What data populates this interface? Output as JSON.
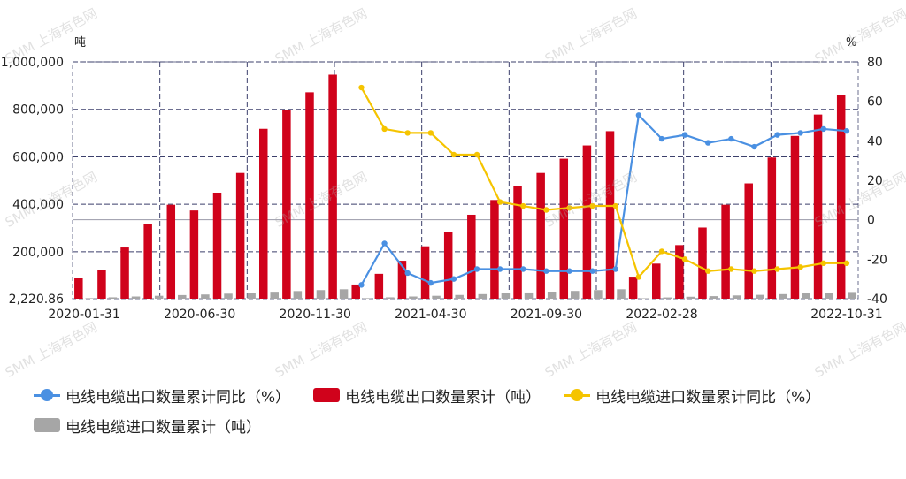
{
  "watermark": "SMM 上海有色网",
  "chart_data": {
    "type": "bar+line",
    "left_unit": "吨",
    "right_unit": "%",
    "y_left_ticks": [
      "2,220.86",
      "200,000",
      "400,000",
      "600,000",
      "800,000",
      "1,000,000"
    ],
    "y_left_tick_values": [
      2220.86,
      200000,
      400000,
      600000,
      800000,
      1000000
    ],
    "y_left_range": [
      2220.86,
      1000000
    ],
    "y_right_ticks": [
      "-40",
      "-20",
      "0",
      "20",
      "40",
      "60",
      "80"
    ],
    "y_right_range": [
      -40,
      80
    ],
    "x_tick_labels": [
      "2020-01-31",
      "2020-06-30",
      "2020-11-30",
      "2021-04-30",
      "2021-09-30",
      "2022-02-28",
      "2022-10-31"
    ],
    "categories": [
      "2020-01",
      "2020-02",
      "2020-03",
      "2020-04",
      "2020-05",
      "2020-06",
      "2020-07",
      "2020-08",
      "2020-09",
      "2020-10",
      "2020-11",
      "2020-12",
      "2021-01",
      "2021-02",
      "2021-03",
      "2021-04",
      "2021-05",
      "2021-06",
      "2021-07",
      "2021-08",
      "2021-09",
      "2021-10",
      "2021-11",
      "2021-12",
      "2022-01",
      "2022-02",
      "2022-03",
      "2022-04",
      "2022-05",
      "2022-06",
      "2022-07",
      "2022-08",
      "2022-09",
      "2022-10"
    ],
    "series": [
      {
        "name": "电线电缆出口数量累计（吨）",
        "type": "bar",
        "axis": "left",
        "color": "#d0021b",
        "values": [
          91000,
          123000,
          218000,
          318000,
          398000,
          374000,
          449000,
          532000,
          718000,
          796000,
          872000,
          946000,
          62000,
          107000,
          162000,
          223000,
          282000,
          356000,
          418000,
          478000,
          532000,
          592000,
          648000,
          708000,
          95000,
          150000,
          228000,
          302000,
          398000,
          488000,
          597000,
          688000,
          778000,
          862000
        ]
      },
      {
        "name": "电线电缆进口数量累计（吨）",
        "type": "bar",
        "axis": "left",
        "color": "#a6a6a6",
        "values": [
          4500,
          8000,
          11500,
          14500,
          17500,
          20000,
          23500,
          27500,
          31500,
          34500,
          38500,
          42000,
          4500,
          8000,
          11500,
          14500,
          18000,
          21500,
          25000,
          28500,
          32000,
          35000,
          38500,
          42000,
          4000,
          7500,
          10500,
          13000,
          16000,
          18500,
          21500,
          24500,
          27500,
          30500
        ]
      },
      {
        "name": "电线电缆出口数量累计同比（%）",
        "type": "line",
        "axis": "right",
        "color": "#4a90e2",
        "values": [
          null,
          null,
          null,
          null,
          null,
          null,
          null,
          null,
          null,
          null,
          null,
          null,
          -33,
          -12,
          -27,
          -32,
          -30,
          -25,
          -25,
          -25,
          -26,
          -26,
          -26,
          -25,
          53,
          41,
          43,
          39,
          41,
          37,
          43,
          44,
          46,
          45
        ]
      },
      {
        "name": "电线电缆进口数量累计同比（%）",
        "type": "line",
        "axis": "right",
        "color": "#f5c400",
        "values": [
          null,
          null,
          null,
          null,
          null,
          null,
          null,
          null,
          null,
          null,
          null,
          null,
          67,
          46,
          44,
          44,
          33,
          33,
          9,
          7,
          5,
          6,
          7,
          7,
          -29,
          -16,
          -20,
          -26,
          -25,
          -26,
          -25,
          -24,
          -22,
          -22
        ]
      }
    ],
    "legend": {
      "position": "bottom",
      "rows": [
        [
          "电线电缆出口数量累计同比（%）",
          "电线电缆出口数量累计（吨）",
          "电线电缆进口数量累计同比（%）"
        ],
        [
          "电线电缆进口数量累计（吨）"
        ]
      ]
    },
    "grid": true
  }
}
